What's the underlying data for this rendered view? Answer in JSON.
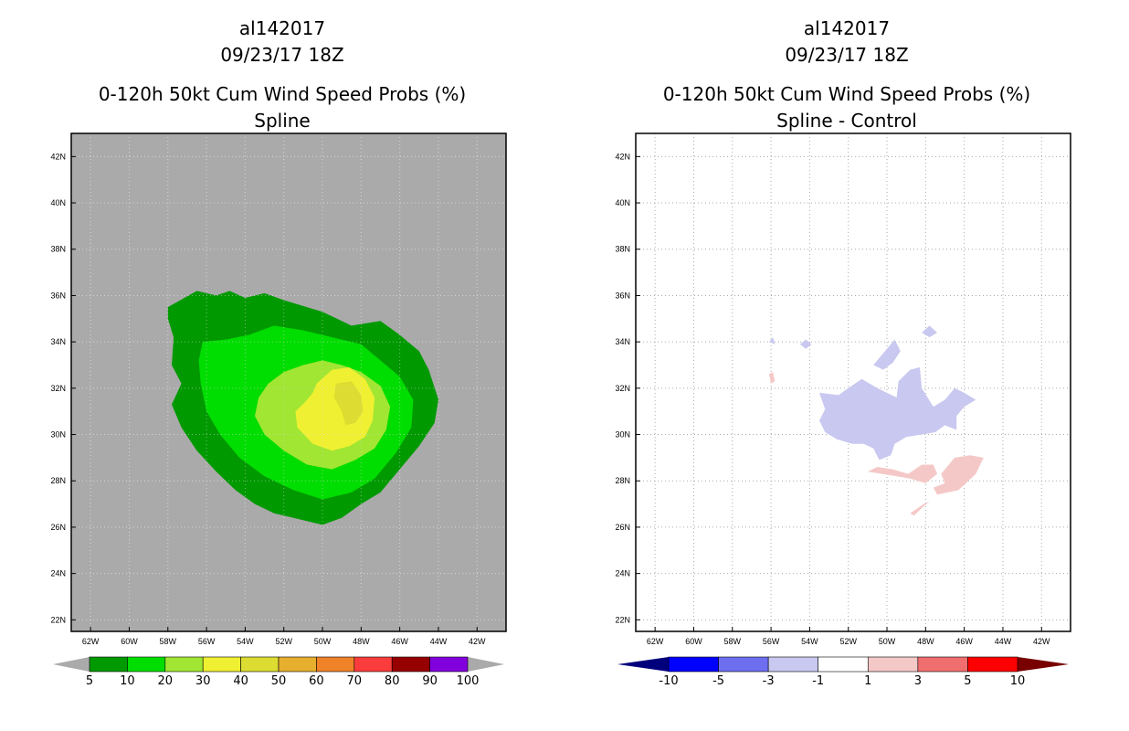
{
  "chart_data": [
    {
      "type": "filled-contour-map",
      "panel": "left",
      "title_lines": [
        "al142017",
        "09/23/17 18Z",
        "0-120h 50kt Cum Wind Speed Probs (%)",
        "Spline"
      ],
      "lon_ticks": [
        "62W",
        "60W",
        "58W",
        "56W",
        "54W",
        "52W",
        "50W",
        "48W",
        "46W",
        "44W",
        "42W"
      ],
      "lat_ticks": [
        "42N",
        "40N",
        "38N",
        "36N",
        "34N",
        "32N",
        "30N",
        "28N",
        "26N",
        "24N",
        "22N"
      ],
      "lon_range": [
        -63.0,
        -40.5
      ],
      "lat_range": [
        21.5,
        43.0
      ],
      "background_color": "#aaaaaa",
      "contour_levels": [
        5,
        10,
        20,
        30,
        40,
        50,
        60,
        70,
        80,
        90,
        100
      ],
      "contour_colors": [
        "#009900",
        "#00dd00",
        "#a0e632",
        "#f0f032",
        "#dcdc32",
        "#e6af2d",
        "#f08228",
        "#fa3c3c",
        "#960000",
        "#8200dc"
      ],
      "colorbar": {
        "labels": [
          "5",
          "10",
          "20",
          "30",
          "40",
          "50",
          "60",
          "70",
          "80",
          "90",
          "100"
        ],
        "below_color": "#aaaaaa",
        "above_color": "#aaaaaa"
      },
      "regions": [
        {
          "level": "5-10",
          "color": "#009900",
          "outline": [
            [
              -58.0,
              35.5
            ],
            [
              -56.5,
              36.2
            ],
            [
              -55.5,
              36.0
            ],
            [
              -54.8,
              36.2
            ],
            [
              -54.0,
              35.9
            ],
            [
              -53.0,
              36.1
            ],
            [
              -52.0,
              35.8
            ],
            [
              -50.0,
              35.3
            ],
            [
              -48.5,
              34.7
            ],
            [
              -47.0,
              34.9
            ],
            [
              -46.0,
              34.3
            ],
            [
              -45.0,
              33.6
            ],
            [
              -44.5,
              32.8
            ],
            [
              -44.0,
              31.5
            ],
            [
              -44.2,
              30.5
            ],
            [
              -45.0,
              29.5
            ],
            [
              -46.0,
              28.5
            ],
            [
              -47.0,
              27.5
            ],
            [
              -48.0,
              27.0
            ],
            [
              -49.0,
              26.4
            ],
            [
              -50.0,
              26.1
            ],
            [
              -51.5,
              26.4
            ],
            [
              -52.5,
              26.6
            ],
            [
              -53.5,
              27.0
            ],
            [
              -54.5,
              27.6
            ],
            [
              -55.5,
              28.4
            ],
            [
              -56.5,
              29.3
            ],
            [
              -57.3,
              30.3
            ],
            [
              -57.8,
              31.3
            ],
            [
              -57.3,
              32.2
            ],
            [
              -57.8,
              33.0
            ],
            [
              -57.7,
              34.2
            ],
            [
              -58.0,
              35.0
            ]
          ]
        },
        {
          "level": "10-20",
          "color": "#00dd00",
          "outline": [
            [
              -56.2,
              34.0
            ],
            [
              -55.0,
              34.1
            ],
            [
              -53.8,
              34.3
            ],
            [
              -52.5,
              34.7
            ],
            [
              -51.0,
              34.5
            ],
            [
              -49.5,
              34.2
            ],
            [
              -48.0,
              33.9
            ],
            [
              -47.0,
              33.2
            ],
            [
              -46.0,
              32.5
            ],
            [
              -45.3,
              31.5
            ],
            [
              -45.4,
              30.3
            ],
            [
              -46.2,
              29.2
            ],
            [
              -47.3,
              28.1
            ],
            [
              -48.5,
              27.5
            ],
            [
              -50.0,
              27.2
            ],
            [
              -51.5,
              27.6
            ],
            [
              -53.0,
              28.2
            ],
            [
              -54.3,
              29.0
            ],
            [
              -55.3,
              30.0
            ],
            [
              -56.0,
              31.0
            ],
            [
              -56.3,
              32.2
            ],
            [
              -56.4,
              33.2
            ]
          ]
        },
        {
          "level": "20-30",
          "color": "#a0e632",
          "outline": [
            [
              -52.8,
              32.2
            ],
            [
              -52.0,
              32.7
            ],
            [
              -51.0,
              33.0
            ],
            [
              -50.0,
              33.2
            ],
            [
              -49.0,
              33.0
            ],
            [
              -48.0,
              32.7
            ],
            [
              -47.0,
              32.1
            ],
            [
              -46.5,
              31.2
            ],
            [
              -46.7,
              30.2
            ],
            [
              -47.3,
              29.4
            ],
            [
              -48.3,
              28.9
            ],
            [
              -49.5,
              28.5
            ],
            [
              -50.8,
              28.7
            ],
            [
              -52.0,
              29.3
            ],
            [
              -53.0,
              30.0
            ],
            [
              -53.5,
              30.8
            ],
            [
              -53.3,
              31.6
            ]
          ]
        },
        {
          "level": "30-40",
          "color": "#f0f032",
          "outline": [
            [
              -50.3,
              32.2
            ],
            [
              -49.5,
              32.8
            ],
            [
              -48.6,
              32.9
            ],
            [
              -47.8,
              32.4
            ],
            [
              -47.3,
              31.6
            ],
            [
              -47.4,
              30.6
            ],
            [
              -47.8,
              29.9
            ],
            [
              -48.6,
              29.5
            ],
            [
              -49.5,
              29.3
            ],
            [
              -50.5,
              29.6
            ],
            [
              -51.3,
              30.3
            ],
            [
              -51.4,
              31.0
            ],
            [
              -50.9,
              31.4
            ],
            [
              -50.5,
              31.8
            ]
          ]
        },
        {
          "level": "40-50",
          "color": "#dcdc32",
          "outline": [
            [
              -49.3,
              32.2
            ],
            [
              -48.5,
              32.3
            ],
            [
              -48.0,
              31.7
            ],
            [
              -47.9,
              31.0
            ],
            [
              -48.3,
              30.5
            ],
            [
              -48.8,
              30.4
            ],
            [
              -49.0,
              31.0
            ],
            [
              -49.4,
              31.6
            ]
          ]
        }
      ]
    },
    {
      "type": "filled-contour-map",
      "panel": "right",
      "title_lines": [
        "al142017",
        "09/23/17 18Z",
        "0-120h 50kt Cum Wind Speed Probs (%)",
        "Spline - Control"
      ],
      "lon_ticks": [
        "62W",
        "60W",
        "58W",
        "56W",
        "54W",
        "52W",
        "50W",
        "48W",
        "46W",
        "44W",
        "42W"
      ],
      "lat_ticks": [
        "42N",
        "40N",
        "38N",
        "36N",
        "34N",
        "32N",
        "30N",
        "28N",
        "26N",
        "24N",
        "22N"
      ],
      "lon_range": [
        -63.0,
        -40.5
      ],
      "lat_range": [
        21.5,
        43.0
      ],
      "background_color": "#ffffff",
      "grid": "dotted",
      "contour_levels": [
        -10,
        -5,
        -3,
        -1,
        1,
        3,
        5,
        10
      ],
      "contour_colors": [
        "#0000ff",
        "#6e6ef0",
        "#c8c8f0",
        "#ffffff",
        "#f5c8c8",
        "#f06e6e",
        "#ff0000"
      ],
      "colorbar": {
        "labels": [
          "-10",
          "-5",
          "-3",
          "-1",
          "1",
          "3",
          "5",
          "10"
        ],
        "below_color": "#00007d",
        "above_color": "#780000"
      },
      "regions": [
        {
          "level": "-3 to -1",
          "color": "#c8c8f0",
          "outline": [
            [
              -53.5,
              31.8
            ],
            [
              -52.5,
              31.7
            ],
            [
              -52.0,
              32.0
            ],
            [
              -51.3,
              32.4
            ],
            [
              -50.5,
              32.0
            ],
            [
              -49.5,
              31.6
            ],
            [
              -49.4,
              32.3
            ],
            [
              -48.8,
              32.8
            ],
            [
              -48.3,
              32.9
            ],
            [
              -48.2,
              32.0
            ],
            [
              -47.6,
              31.2
            ],
            [
              -47.0,
              31.5
            ],
            [
              -46.5,
              32.0
            ],
            [
              -46.0,
              31.8
            ],
            [
              -45.4,
              31.5
            ],
            [
              -46.0,
              31.2
            ],
            [
              -46.4,
              30.8
            ],
            [
              -46.4,
              30.2
            ],
            [
              -47.0,
              30.4
            ],
            [
              -47.5,
              30.1
            ],
            [
              -48.2,
              30.0
            ],
            [
              -49.0,
              29.9
            ],
            [
              -49.6,
              29.6
            ],
            [
              -49.8,
              29.1
            ],
            [
              -50.4,
              28.9
            ],
            [
              -50.7,
              29.4
            ],
            [
              -51.2,
              29.6
            ],
            [
              -51.8,
              29.6
            ],
            [
              -52.6,
              29.8
            ],
            [
              -53.2,
              30.1
            ],
            [
              -53.5,
              30.6
            ],
            [
              -53.2,
              31.1
            ]
          ]
        },
        {
          "level": "-3 to -1",
          "color": "#c8c8f0",
          "outline": [
            [
              -50.7,
              33.0
            ],
            [
              -50.1,
              33.6
            ],
            [
              -49.6,
              34.1
            ],
            [
              -49.3,
              33.6
            ],
            [
              -49.7,
              33.1
            ],
            [
              -50.2,
              32.8
            ]
          ]
        },
        {
          "level": "-3 to -1",
          "color": "#c8c8f0",
          "outline": [
            [
              -48.2,
              34.4
            ],
            [
              -47.8,
              34.7
            ],
            [
              -47.4,
              34.4
            ],
            [
              -47.8,
              34.2
            ]
          ]
        },
        {
          "level": "-3 to -1",
          "color": "#c8c8f0",
          "outline": [
            [
              -54.5,
              33.9
            ],
            [
              -54.2,
              34.1
            ],
            [
              -53.9,
              33.9
            ],
            [
              -54.2,
              33.7
            ]
          ]
        },
        {
          "level": "-3 to -1",
          "color": "#c8c8f0",
          "outline": [
            [
              -56.1,
              34.0
            ],
            [
              -55.9,
              34.2
            ],
            [
              -55.8,
              33.9
            ]
          ]
        },
        {
          "level": "1 to 3",
          "color": "#f5c8c8",
          "outline": [
            [
              -47.2,
              28.3
            ],
            [
              -46.5,
              29.0
            ],
            [
              -45.7,
              29.1
            ],
            [
              -45.0,
              29.0
            ],
            [
              -45.4,
              28.3
            ],
            [
              -46.3,
              27.6
            ],
            [
              -47.4,
              27.4
            ],
            [
              -47.6,
              27.7
            ],
            [
              -47.0,
              27.9
            ]
          ]
        },
        {
          "level": "1 to 3",
          "color": "#f5c8c8",
          "outline": [
            [
              -48.9,
              28.3
            ],
            [
              -48.2,
              28.7
            ],
            [
              -47.6,
              28.7
            ],
            [
              -47.4,
              28.3
            ],
            [
              -48.0,
              27.9
            ],
            [
              -48.8,
              28.1
            ],
            [
              -49.5,
              28.2
            ],
            [
              -51.0,
              28.4
            ],
            [
              -50.5,
              28.6
            ],
            [
              -49.7,
              28.5
            ]
          ]
        },
        {
          "level": "1 to 3",
          "color": "#f5c8c8",
          "outline": [
            [
              -48.6,
              26.5
            ],
            [
              -48.1,
              26.9
            ],
            [
              -47.8,
              27.1
            ],
            [
              -48.1,
              27.0
            ],
            [
              -48.8,
              26.6
            ]
          ]
        },
        {
          "level": "1 to 3",
          "color": "#f5c8c8",
          "outline": [
            [
              -56.1,
              32.6
            ],
            [
              -55.9,
              32.7
            ],
            [
              -55.8,
              32.3
            ],
            [
              -56.0,
              32.2
            ]
          ]
        }
      ]
    }
  ]
}
